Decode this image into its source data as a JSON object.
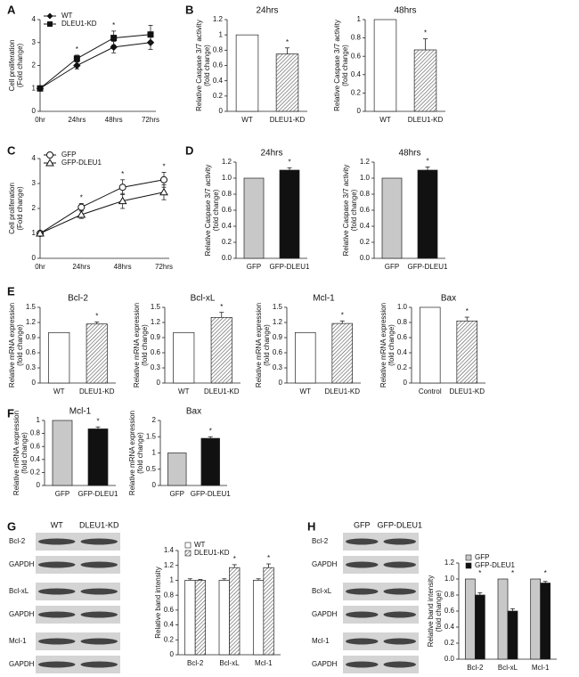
{
  "chart_data": [
    {
      "type": "line",
      "panel": "A",
      "ylabel": [
        "Cell proliferation",
        "(Fold change)"
      ],
      "categories": [
        "0hr",
        "24hrs",
        "48hrs",
        "72hrs"
      ],
      "ylim": [
        0,
        4
      ],
      "yticks": [
        0,
        1,
        2,
        3,
        4
      ],
      "legend": "top-left",
      "series": [
        {
          "name": "WT",
          "color": "#111111",
          "marker": "diamond",
          "marker_fill": "#111111",
          "values": [
            1,
            2.0,
            2.8,
            3.0
          ],
          "errors": [
            null,
            0.15,
            0.25,
            0.3
          ]
        },
        {
          "name": "DLEU1-KD",
          "color": "#111111",
          "marker": "square",
          "marker_fill": "#111111",
          "values": [
            1,
            2.3,
            3.2,
            3.35
          ],
          "errors": [
            null,
            0.15,
            0.3,
            0.4
          ]
        }
      ],
      "significance": [
        null,
        "*",
        "*",
        null
      ]
    },
    {
      "type": "bar",
      "panel": "B",
      "title": "24hrs",
      "ylabel": [
        "Relative Caspase 3/7 activity",
        "(fold change)"
      ],
      "categories": [
        "WT",
        "DLEU1-KD"
      ],
      "values": [
        1.0,
        0.75
      ],
      "errors": [
        null,
        0.08
      ],
      "fills": [
        "#ffffff",
        "hatch"
      ],
      "ylim": [
        0,
        1.2
      ],
      "yticks": [
        0,
        0.2,
        0.4,
        0.6,
        0.8,
        1,
        1.2
      ],
      "significance": [
        null,
        "*"
      ]
    },
    {
      "type": "bar",
      "title": "48hrs",
      "ylabel": [
        "Relative Caspase 3/7 activity",
        "(fold change)"
      ],
      "categories": [
        "WT",
        "DLEU1-KD"
      ],
      "values": [
        1.0,
        0.67
      ],
      "errors": [
        null,
        0.12
      ],
      "fills": [
        "#ffffff",
        "hatch"
      ],
      "ylim": [
        0,
        1.0
      ],
      "yticks": [
        0,
        0.2,
        0.4,
        0.6,
        0.8,
        1
      ],
      "significance": [
        null,
        "*"
      ]
    },
    {
      "type": "line",
      "panel": "C",
      "ylabel": [
        "Cell proliferation",
        "(Fold change)"
      ],
      "categories": [
        "0hr",
        "24hrs",
        "48hrs",
        "72hrs"
      ],
      "ylim": [
        0,
        4
      ],
      "yticks": [
        0,
        1,
        2,
        3,
        4
      ],
      "legend": "top-left",
      "series": [
        {
          "name": "GFP",
          "color": "#111111",
          "marker": "circle",
          "marker_fill": "#ffffff",
          "values": [
            1,
            2.05,
            2.85,
            3.15
          ],
          "errors": [
            null,
            0.15,
            0.3,
            0.3
          ]
        },
        {
          "name": "GFP-DLEU1",
          "color": "#111111",
          "marker": "triangle",
          "marker_fill": "#ffffff",
          "values": [
            1,
            1.75,
            2.3,
            2.65
          ],
          "errors": [
            null,
            0.15,
            0.3,
            0.3
          ]
        }
      ],
      "significance": [
        null,
        "*",
        "*",
        "*"
      ]
    },
    {
      "type": "bar",
      "panel": "D",
      "title": "24hrs",
      "ylabel": [
        "Relative Caspase 3/7 activity",
        "(fold change)"
      ],
      "categories": [
        "GFP",
        "GFP-DLEU1"
      ],
      "values": [
        1.0,
        1.1
      ],
      "errors": [
        null,
        0.03
      ],
      "fills": [
        "#c8c8c8",
        "#111111"
      ],
      "ylim": [
        0,
        1.2
      ],
      "yticks": [
        {
          "value": 0,
          "label": "0.0"
        },
        0.2,
        0.4,
        0.6,
        0.8,
        {
          "value": 1,
          "label": "1.0"
        },
        1.2
      ],
      "significance": [
        null,
        "*"
      ]
    },
    {
      "type": "bar",
      "title": "48hrs",
      "ylabel": [
        "Relative Caspase 3/7 activity",
        "(fold change)"
      ],
      "categories": [
        "GFP",
        "GFP-DLEU1"
      ],
      "values": [
        1.0,
        1.1
      ],
      "errors": [
        null,
        0.04
      ],
      "fills": [
        "#c8c8c8",
        "#111111"
      ],
      "ylim": [
        0,
        1.2
      ],
      "yticks": [
        {
          "value": 0,
          "label": "0.0"
        },
        0.2,
        0.4,
        0.6,
        0.8,
        {
          "value": 1,
          "label": "1.0"
        },
        1.2
      ],
      "significance": [
        null,
        "*"
      ]
    },
    {
      "type": "bar",
      "panel": "E",
      "title": "Bcl-2",
      "ylabel": [
        "Relative mRNA expression",
        "(fold change)"
      ],
      "categories": [
        "WT",
        "DLEU1-KD"
      ],
      "values": [
        1.0,
        1.17
      ],
      "errors": [
        null,
        0.04
      ],
      "fills": [
        "#ffffff",
        "hatch"
      ],
      "ylim": [
        0,
        1.5
      ],
      "yticks": [
        0,
        0.3,
        0.6,
        0.9,
        1.2,
        1.5
      ],
      "significance": [
        null,
        "*"
      ]
    },
    {
      "type": "bar",
      "title": "Bcl-xL",
      "ylabel": [
        "Relative mRNA expression",
        "(fold change)"
      ],
      "categories": [
        "WT",
        "DLEU1-KD"
      ],
      "values": [
        1.0,
        1.3
      ],
      "errors": [
        null,
        0.1
      ],
      "fills": [
        "#ffffff",
        "hatch"
      ],
      "ylim": [
        0,
        1.5
      ],
      "yticks": [
        0,
        0.3,
        0.6,
        0.9,
        1.2,
        1.5
      ],
      "significance": [
        null,
        "*"
      ]
    },
    {
      "type": "bar",
      "title": "Mcl-1",
      "ylabel": [
        "Relative mRNA expression",
        "(fold change)"
      ],
      "categories": [
        "WT",
        "DLEU1-KD"
      ],
      "values": [
        1.0,
        1.18
      ],
      "errors": [
        null,
        0.05
      ],
      "fills": [
        "#ffffff",
        "hatch"
      ],
      "ylim": [
        0,
        1.5
      ],
      "yticks": [
        0,
        0.3,
        0.6,
        0.9,
        1.2,
        1.5
      ],
      "significance": [
        null,
        "*"
      ]
    },
    {
      "type": "bar",
      "title": "Bax",
      "ylabel": [
        "Relative mRNA expression",
        "(fold change)"
      ],
      "categories": [
        "Control",
        "DLEU1-KD"
      ],
      "values": [
        1.0,
        0.82
      ],
      "errors": [
        null,
        0.05
      ],
      "fills": [
        "#ffffff",
        "hatch"
      ],
      "ylim": [
        0,
        1.0
      ],
      "yticks": [
        0,
        0.2,
        0.4,
        0.6,
        0.8,
        {
          "value": 1,
          "label": "1.0"
        }
      ],
      "significance": [
        null,
        "*"
      ]
    },
    {
      "type": "bar",
      "panel": "F",
      "title": "Mcl-1",
      "ylabel": [
        "Relative mRNA expression",
        "(fold change)"
      ],
      "categories": [
        "GFP",
        "GFP-DLEU1"
      ],
      "values": [
        1.0,
        0.87
      ],
      "errors": [
        null,
        0.03
      ],
      "fills": [
        "#c8c8c8",
        "#111111"
      ],
      "ylim": [
        0,
        1
      ],
      "yticks": [
        0,
        0.2,
        0.4,
        0.6,
        0.8,
        1
      ],
      "significance": [
        null,
        "*"
      ]
    },
    {
      "type": "bar",
      "title": "Bax",
      "ylabel": [
        "Relative mRNA expression",
        "(fold change)"
      ],
      "categories": [
        "GFP",
        "GFP-DLEU1"
      ],
      "values": [
        1.0,
        1.45
      ],
      "errors": [
        null,
        0.05
      ],
      "fills": [
        "#c8c8c8",
        "#111111"
      ],
      "ylim": [
        0,
        2
      ],
      "yticks": [
        0,
        0.5,
        1,
        1.5,
        2
      ],
      "significance": [
        null,
        "*"
      ]
    },
    {
      "type": "grouped_bar",
      "panel": "G",
      "ylabel": [
        "Relative band intensity"
      ],
      "legend": "top-left",
      "categories": [
        "Bcl-2",
        "Bcl-xL",
        "Mcl-1"
      ],
      "ylim": [
        0,
        1.4
      ],
      "yticks": [
        0,
        0.2,
        0.4,
        0.6,
        0.8,
        1,
        1.2,
        1.4
      ],
      "series": [
        {
          "name": "WT",
          "fill": "#ffffff",
          "values": [
            1.0,
            1.0,
            1.0
          ],
          "errors": [
            0.02,
            0.02,
            0.02
          ]
        },
        {
          "name": "DLEU1-KD",
          "fill": "hatch",
          "values": [
            1.0,
            1.17,
            1.17
          ],
          "errors": [
            0.01,
            0.04,
            0.05
          ]
        }
      ],
      "significance": [
        null,
        "*",
        "*"
      ]
    },
    {
      "type": "grouped_bar",
      "panel": "H",
      "ylabel": [
        "Relative band intensity",
        "(fold change)"
      ],
      "legend": "top-left",
      "categories": [
        "Bcl-2",
        "Bcl-xL",
        "Mcl-1"
      ],
      "ylim": [
        0,
        1.2
      ],
      "yticks": [
        {
          "value": 0,
          "label": "0.0"
        },
        0.2,
        0.4,
        0.6,
        0.8,
        {
          "value": 1,
          "label": "1.0"
        },
        1.2
      ],
      "series": [
        {
          "name": "GFP",
          "fill": "#c8c8c8",
          "values": [
            1.0,
            1.0,
            1.0
          ],
          "errors": [
            null,
            null,
            null
          ]
        },
        {
          "name": "GFP-DLEU1",
          "fill": "#111111",
          "values": [
            0.8,
            0.6,
            0.95
          ],
          "errors": [
            0.03,
            0.03,
            0.02
          ]
        }
      ],
      "significance": [
        "*",
        "*",
        "*"
      ]
    }
  ],
  "blots": [
    {
      "columns": [
        "WT",
        "DLEU1-KD"
      ],
      "rows": [
        "Bcl-2",
        "GAPDH",
        "Bcl-xL",
        "GAPDH",
        "Mcl-1",
        "GAPDH"
      ]
    },
    {
      "columns": [
        "GFP",
        "GFP-DLEU1"
      ],
      "rows": [
        "Bcl-2",
        "GAPDH",
        "Bcl-xL",
        "GAPDH",
        "Mcl-1",
        "GAPDH"
      ]
    }
  ]
}
